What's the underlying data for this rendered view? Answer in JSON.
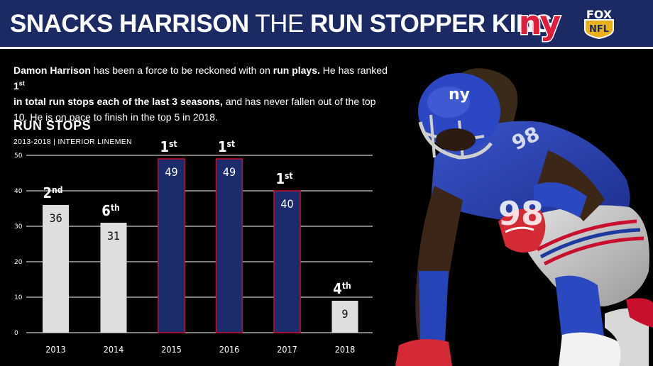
{
  "header": {
    "title_part1": "SNACKS HARRISON",
    "title_part2": "THE",
    "title_part3": "RUN STOPPER KING",
    "team_logo_text": "ny",
    "network_badge_line1": "FOX",
    "network_badge_line2": "NFL"
  },
  "description": {
    "name": "Damon Harrison",
    "t1": " has been a force to be reckoned with on ",
    "b1": "run plays.",
    "t2": " He has ranked ",
    "rank_num": "1",
    "rank_suffix": "st",
    "b2": "in total run stops each of the last 3 seasons,",
    "t3": " and has never fallen out of the top 10. He is on pace to finish in the top 5 in 2018."
  },
  "chart_data": {
    "type": "bar",
    "title": "RUN STOPS",
    "subtitle": "2013-2018 | INTERIOR LINEMEN",
    "categories": [
      "2013",
      "2014",
      "2015",
      "2016",
      "2017",
      "2018"
    ],
    "values": [
      36,
      31,
      49,
      49,
      40,
      9
    ],
    "rank_numbers": [
      "2",
      "6",
      "1",
      "1",
      "1",
      "4"
    ],
    "rank_suffixes": [
      "nd",
      "th",
      "st",
      "st",
      "st",
      "th"
    ],
    "highlight": [
      false,
      false,
      true,
      true,
      true,
      false
    ],
    "yticks": [
      0,
      10,
      20,
      30,
      40,
      50
    ],
    "ylim": [
      0,
      50
    ],
    "grid": true,
    "colors": {
      "normal_bar": "#dedede",
      "highlight_bar": "#1c2b6b",
      "highlight_border": "#c8102e",
      "grid": "#ffffff"
    }
  }
}
